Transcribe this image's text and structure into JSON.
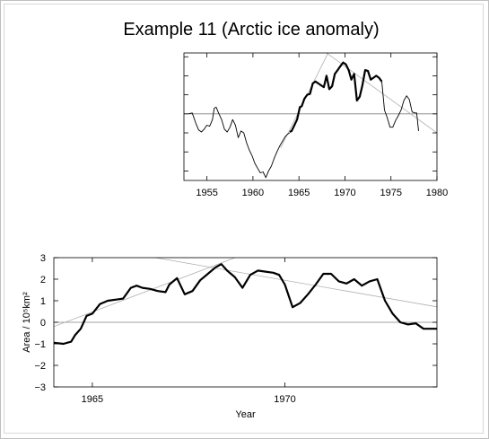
{
  "title": "Example 11 (Arctic ice anomaly)",
  "colors": {
    "frame": "#bfbfbf",
    "axis": "#000000",
    "trend": "#b0b0b0",
    "zero": "#808080",
    "data": "#000000"
  },
  "chart_data": [
    {
      "type": "line",
      "title": "",
      "xlabel": "",
      "ylabel": "",
      "xlim": [
        1952.5,
        1980
      ],
      "ylim": [
        -3.5,
        3.2
      ],
      "grid": false,
      "x_ticks": [
        "1955",
        "1960",
        "1965",
        "1970",
        "1975",
        "1980"
      ],
      "zero_line": 0,
      "series": [
        {
          "style": "thin",
          "x": [
            1953.0,
            1953.4,
            1953.8,
            1954.1,
            1954.4,
            1954.7,
            1955.0,
            1955.3,
            1955.6,
            1955.8,
            1956.0,
            1956.3,
            1956.6,
            1956.9,
            1957.2,
            1957.5,
            1957.8,
            1958.1,
            1958.4,
            1958.7,
            1959.0,
            1959.3,
            1959.6,
            1959.9,
            1960.2,
            1960.5,
            1960.8,
            1961.1,
            1961.4,
            1961.7,
            1962.0,
            1962.3,
            1962.6,
            1962.9,
            1963.2,
            1963.5,
            1963.8,
            1964.0
          ],
          "y": [
            0.0,
            0.05,
            -0.5,
            -0.85,
            -0.95,
            -0.8,
            -0.6,
            -0.65,
            -0.3,
            0.3,
            0.35,
            0.0,
            -0.3,
            -0.8,
            -0.95,
            -0.7,
            -0.3,
            -0.6,
            -1.25,
            -0.9,
            -1.0,
            -1.5,
            -1.9,
            -2.2,
            -2.6,
            -2.85,
            -3.1,
            -3.05,
            -3.35,
            -3.0,
            -2.75,
            -2.35,
            -2.0,
            -1.7,
            -1.45,
            -1.2,
            -1.05,
            -1.0
          ]
        },
        {
          "style": "thick",
          "x": [
            1964.0,
            1964.2,
            1964.5,
            1964.8,
            1965.1,
            1965.3,
            1965.6,
            1965.9,
            1966.2,
            1966.5,
            1966.8,
            1967.1,
            1967.4,
            1967.7,
            1968.0,
            1968.3,
            1968.6,
            1968.9,
            1969.2,
            1969.5,
            1969.8,
            1970.1,
            1970.4,
            1970.7,
            1971.0,
            1971.3,
            1971.6,
            1971.9,
            1972.2,
            1972.5,
            1972.8,
            1973.1,
            1973.4,
            1973.7,
            1974.0
          ],
          "y": [
            -0.95,
            -0.9,
            -0.6,
            -0.3,
            0.35,
            0.4,
            0.8,
            1.0,
            1.05,
            1.6,
            1.7,
            1.6,
            1.5,
            1.4,
            2.0,
            1.3,
            1.45,
            2.1,
            2.3,
            2.5,
            2.7,
            2.6,
            2.3,
            1.8,
            2.1,
            0.7,
            0.9,
            1.5,
            2.3,
            2.25,
            1.8,
            1.9,
            2.0,
            1.9,
            1.7
          ]
        },
        {
          "style": "thin",
          "x": [
            1974.0,
            1974.3,
            1974.6,
            1974.9,
            1975.2,
            1975.5,
            1975.8,
            1976.1,
            1976.4,
            1976.7,
            1977.0,
            1977.3,
            1977.6,
            1977.8,
            1978.0
          ],
          "y": [
            1.7,
            0.2,
            -0.2,
            -0.7,
            -0.7,
            -0.35,
            -0.1,
            0.2,
            0.7,
            0.95,
            0.75,
            0.1,
            0.05,
            0.05,
            -0.9
          ]
        }
      ],
      "trend_lines": [
        {
          "x": [
            1963.0,
            1969.0
          ],
          "y": [
            -1.8,
            4.0
          ]
        },
        {
          "x": [
            1966.0,
            1980.0
          ],
          "y": [
            3.9,
            -1.0
          ]
        }
      ]
    },
    {
      "type": "line",
      "title": "",
      "xlabel": "Year",
      "ylabel": "Area / 10⁵km²",
      "xlim": [
        1964.0,
        1973.95
      ],
      "ylim": [
        -3,
        3
      ],
      "grid": false,
      "x_ticks": [
        "1965",
        "1970"
      ],
      "y_ticks": [
        "3",
        "2",
        "1",
        "0",
        "−1",
        "−2",
        "−3"
      ],
      "zero_line": 0,
      "series": [
        {
          "style": "thick",
          "x": [
            1964.0,
            1964.25,
            1964.45,
            1964.55,
            1964.7,
            1964.85,
            1965.0,
            1965.2,
            1965.4,
            1965.6,
            1965.8,
            1966.0,
            1966.15,
            1966.3,
            1966.5,
            1966.7,
            1966.9,
            1967.0,
            1967.2,
            1967.4,
            1967.6,
            1967.8,
            1968.0,
            1968.2,
            1968.35,
            1968.5,
            1968.7,
            1968.9,
            1969.1,
            1969.3,
            1969.5,
            1969.7,
            1969.85,
            1970.0,
            1970.2,
            1970.4,
            1970.6,
            1970.8,
            1971.0,
            1971.2,
            1971.4,
            1971.6,
            1971.8,
            1972.0,
            1972.2,
            1972.4,
            1972.6,
            1972.8,
            1973.0,
            1973.2,
            1973.4,
            1973.6,
            1973.75,
            1973.95
          ],
          "y": [
            -0.95,
            -1.0,
            -0.9,
            -0.6,
            -0.3,
            0.3,
            0.4,
            0.85,
            1.0,
            1.05,
            1.1,
            1.6,
            1.7,
            1.6,
            1.55,
            1.45,
            1.4,
            1.75,
            2.05,
            1.3,
            1.45,
            1.95,
            2.25,
            2.55,
            2.7,
            2.4,
            2.1,
            1.6,
            2.2,
            2.4,
            2.35,
            2.3,
            2.2,
            1.75,
            0.7,
            0.9,
            1.3,
            1.75,
            2.25,
            2.25,
            1.9,
            1.8,
            2.0,
            1.7,
            1.9,
            2.0,
            1.0,
            0.4,
            0.0,
            -0.1,
            -0.05,
            -0.3,
            -0.3,
            -0.3
          ]
        }
      ],
      "trend_lines": [
        {
          "x": [
            1964.0,
            1969.0
          ],
          "y": [
            -0.2,
            3.2
          ]
        },
        {
          "x": [
            1966.0,
            1974.0
          ],
          "y": [
            3.2,
            0.7
          ]
        }
      ]
    }
  ]
}
